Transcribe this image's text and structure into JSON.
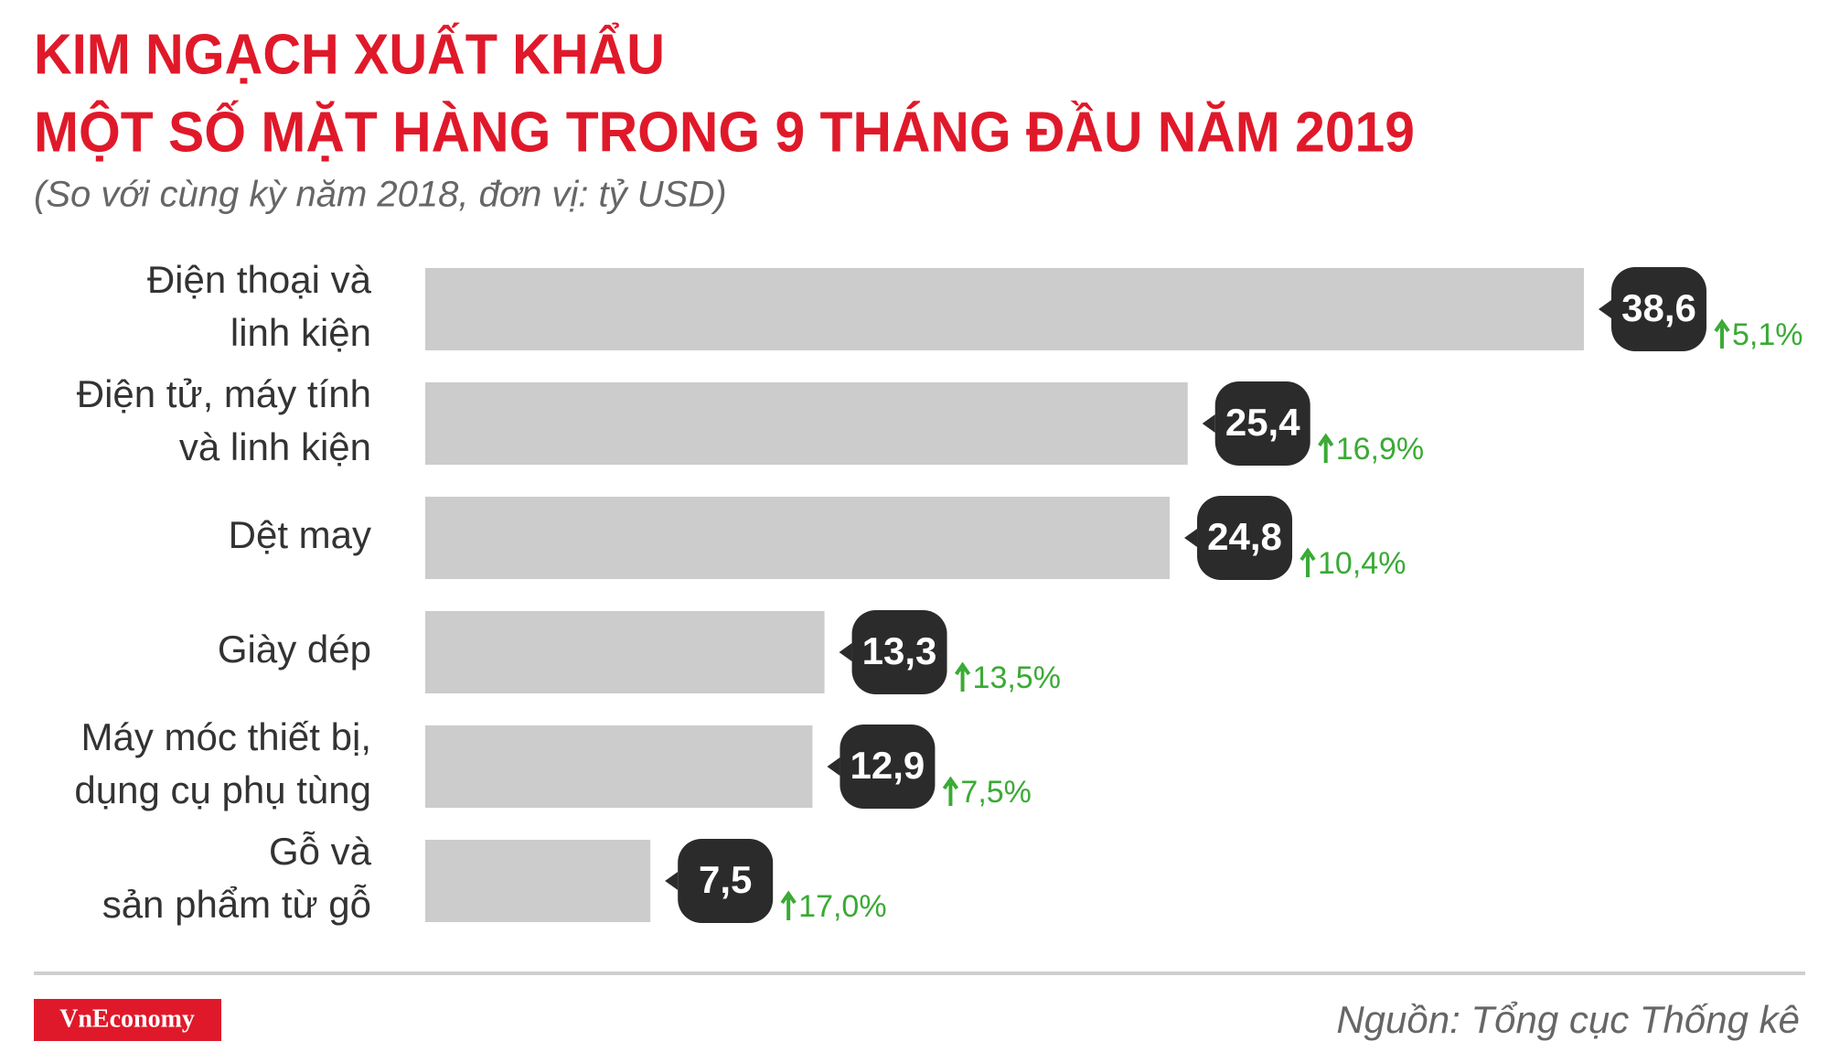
{
  "chart_data": {
    "type": "hbar",
    "title": [
      "KIM NGẠCH XUẤT KHẨU",
      "MỘT SỐ MẶT HÀNG TRONG 9 THÁNG ĐẦU NĂM 2019"
    ],
    "subtitle": "(So với cùng kỳ năm 2018, đơn vị: tỷ USD)",
    "categories": [
      [
        "Điện thoại và",
        "linh kiện"
      ],
      [
        "Điện tử, máy tính",
        "và linh kiện"
      ],
      [
        "Dệt may"
      ],
      [
        "Giày dép"
      ],
      [
        "Máy móc thiết bị,",
        "dụng cụ phụ tùng"
      ],
      [
        "Gỗ và",
        "sản phẩm từ gỗ"
      ]
    ],
    "values": [
      38.6,
      25.4,
      24.8,
      13.3,
      12.9,
      7.5
    ],
    "value_labels": [
      "38,6",
      "25,4",
      "24,8",
      "13,3",
      "12,9",
      "7,5"
    ],
    "growth_labels": [
      "5,1%",
      "16,9%",
      "10,4%",
      "13,5%",
      "7,5%",
      "17,0%"
    ],
    "color": "#cccccc",
    "source": "Nguồn: Tổng cục Thống kê",
    "logo": "VnEconomy"
  }
}
